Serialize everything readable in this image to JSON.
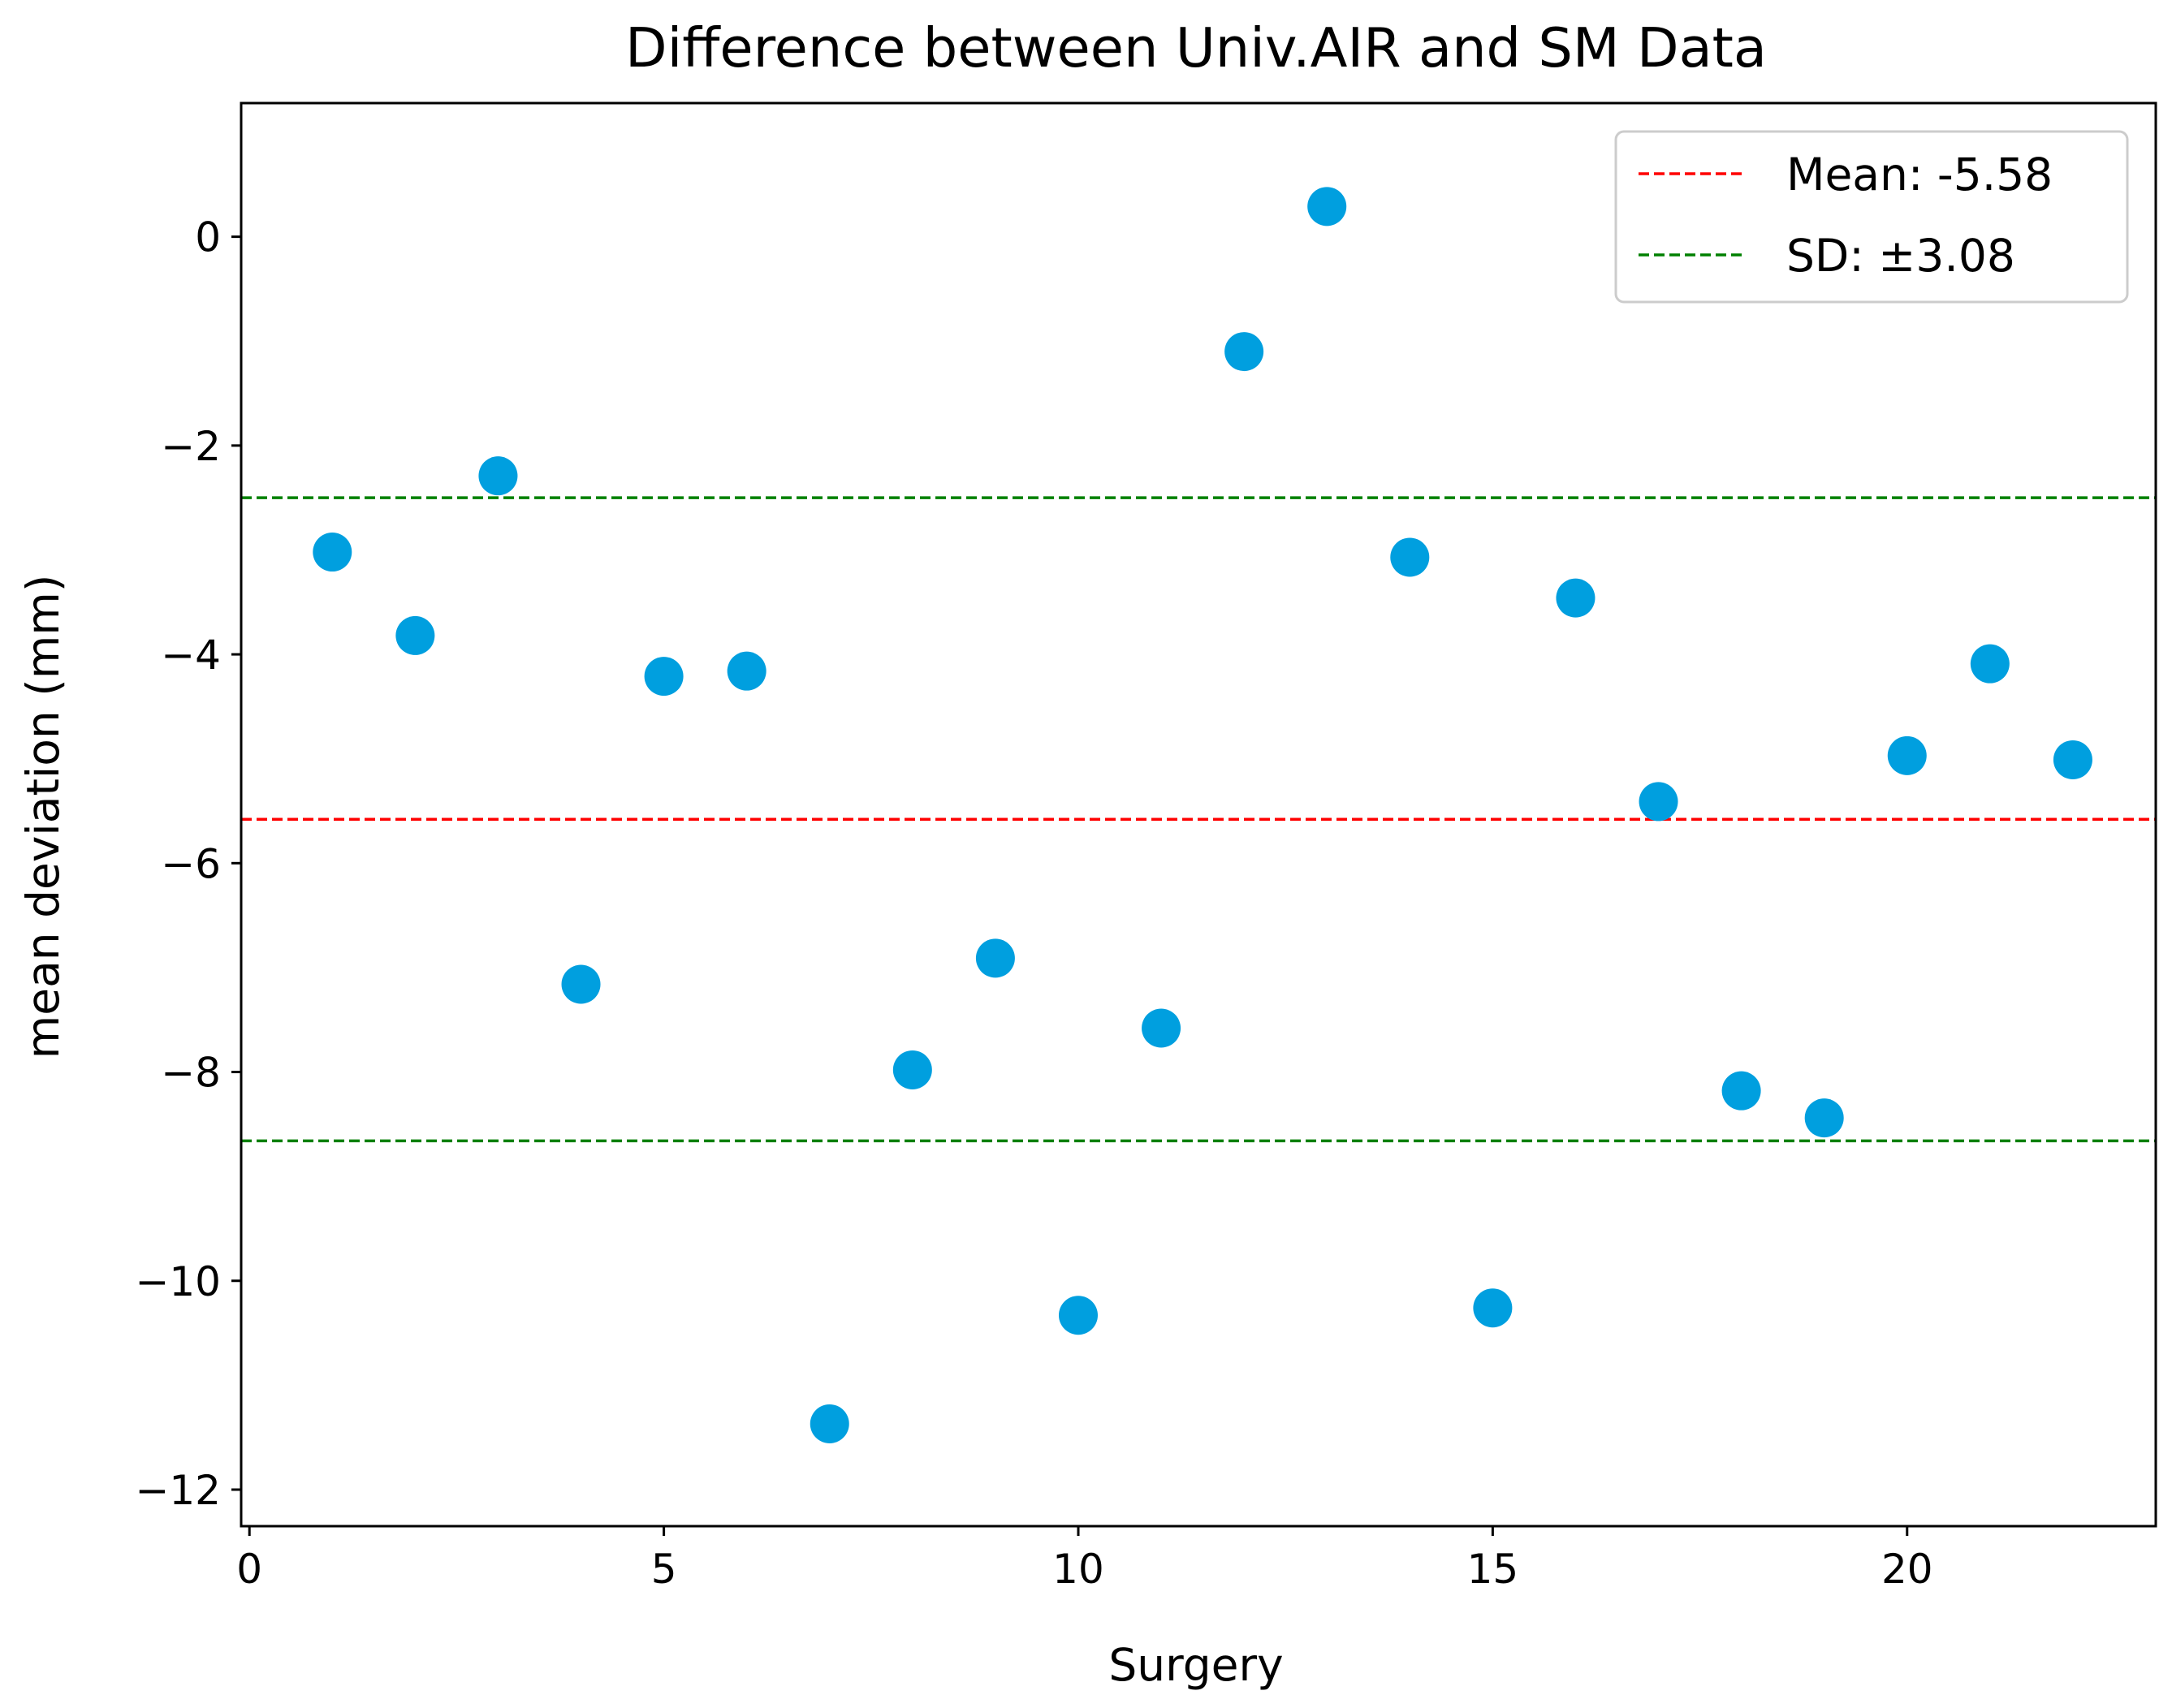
{
  "chart_data": {
    "type": "scatter",
    "title": "Difference between Univ.AIR and SM Data",
    "xlabel": "Surgery",
    "ylabel": "mean deviation (mm)",
    "xlim": [
      -0.1,
      23.0
    ],
    "ylim": [
      -12.35,
      1.28
    ],
    "xticks": [
      0,
      5,
      10,
      15,
      20
    ],
    "yticks": [
      0,
      -2,
      -4,
      -6,
      -8,
      -10,
      -12
    ],
    "ytick_labels": [
      "0",
      "−2",
      "−4",
      "−6",
      "−8",
      "−10",
      "−12"
    ],
    "grid": false,
    "legend_position": "top-right",
    "colors": {
      "points": "#009fdf",
      "mean_line": "#ff0000",
      "sd_lines": "#008000"
    },
    "series": [
      {
        "x": [
          1,
          2,
          3,
          4,
          5,
          6,
          7,
          8,
          9,
          10,
          11,
          12,
          13,
          14,
          15,
          16,
          17,
          18,
          19,
          20,
          21,
          22
        ],
        "y": [
          -3.02,
          -3.82,
          -2.29,
          -7.16,
          -4.21,
          -4.16,
          -11.37,
          -7.98,
          -6.91,
          -10.33,
          -7.58,
          -1.1,
          0.29,
          -3.07,
          -10.26,
          -3.46,
          -5.41,
          -8.18,
          -8.44,
          -4.97,
          -4.09,
          -5.01
        ]
      }
    ],
    "reference_lines": [
      {
        "label": "Mean: -5.58",
        "y": -5.58,
        "style": "dashed",
        "color": "#ff0000",
        "in_legend": true
      },
      {
        "label": "SD: ±3.08",
        "y": -2.5,
        "style": "dashed",
        "color": "#008000",
        "in_legend": true
      },
      {
        "label": "",
        "y": -8.66,
        "style": "dashed",
        "color": "#008000",
        "in_legend": false
      }
    ]
  }
}
